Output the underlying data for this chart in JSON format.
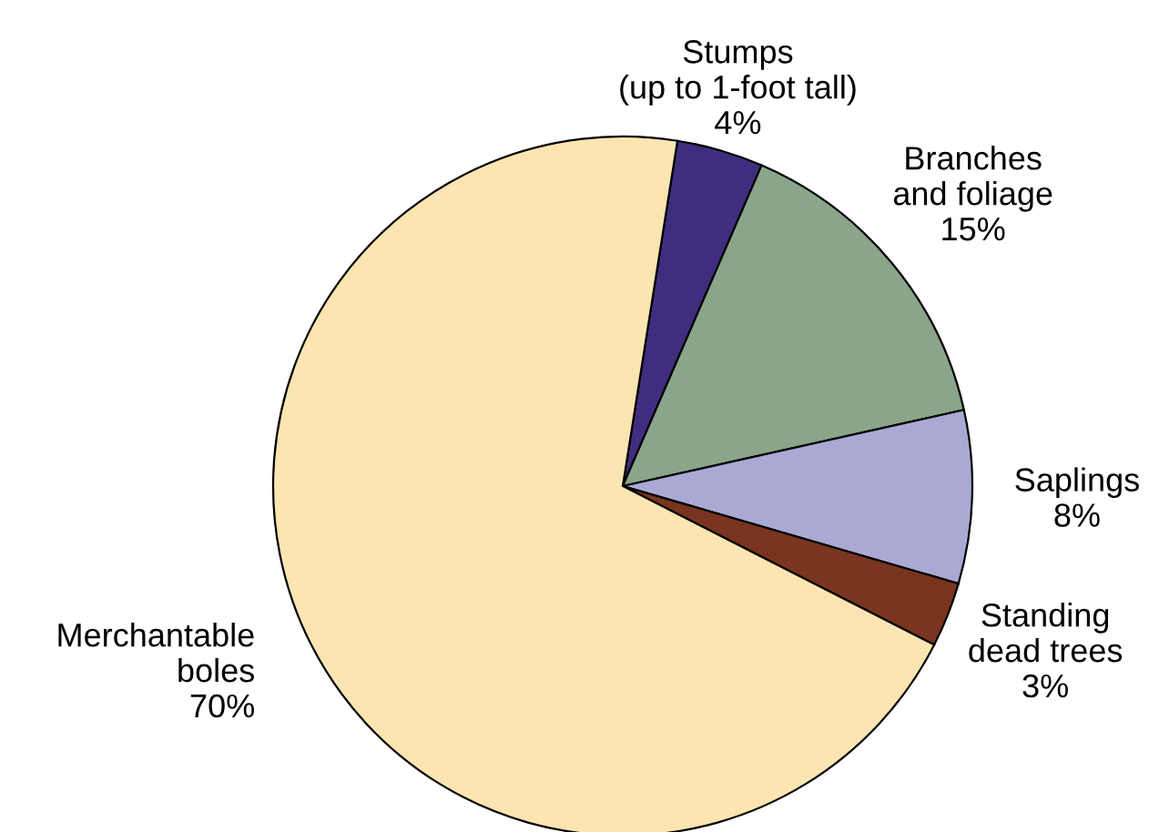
{
  "chart_data": {
    "type": "pie",
    "categories": [
      "Stumps\n(up to 1-foot tall)",
      "Branches\nand foliage",
      "Saplings",
      "Standing\ndead trees",
      "Merchantable\nboles"
    ],
    "values": [
      4,
      15,
      8,
      3,
      70
    ],
    "colors": [
      "#3f2e80",
      "#8aa58a",
      "#aaa9d4",
      "#7a3420",
      "#fde5b1"
    ],
    "value_labels": [
      "4%",
      "15%",
      "8%",
      "3%",
      "70%"
    ]
  }
}
